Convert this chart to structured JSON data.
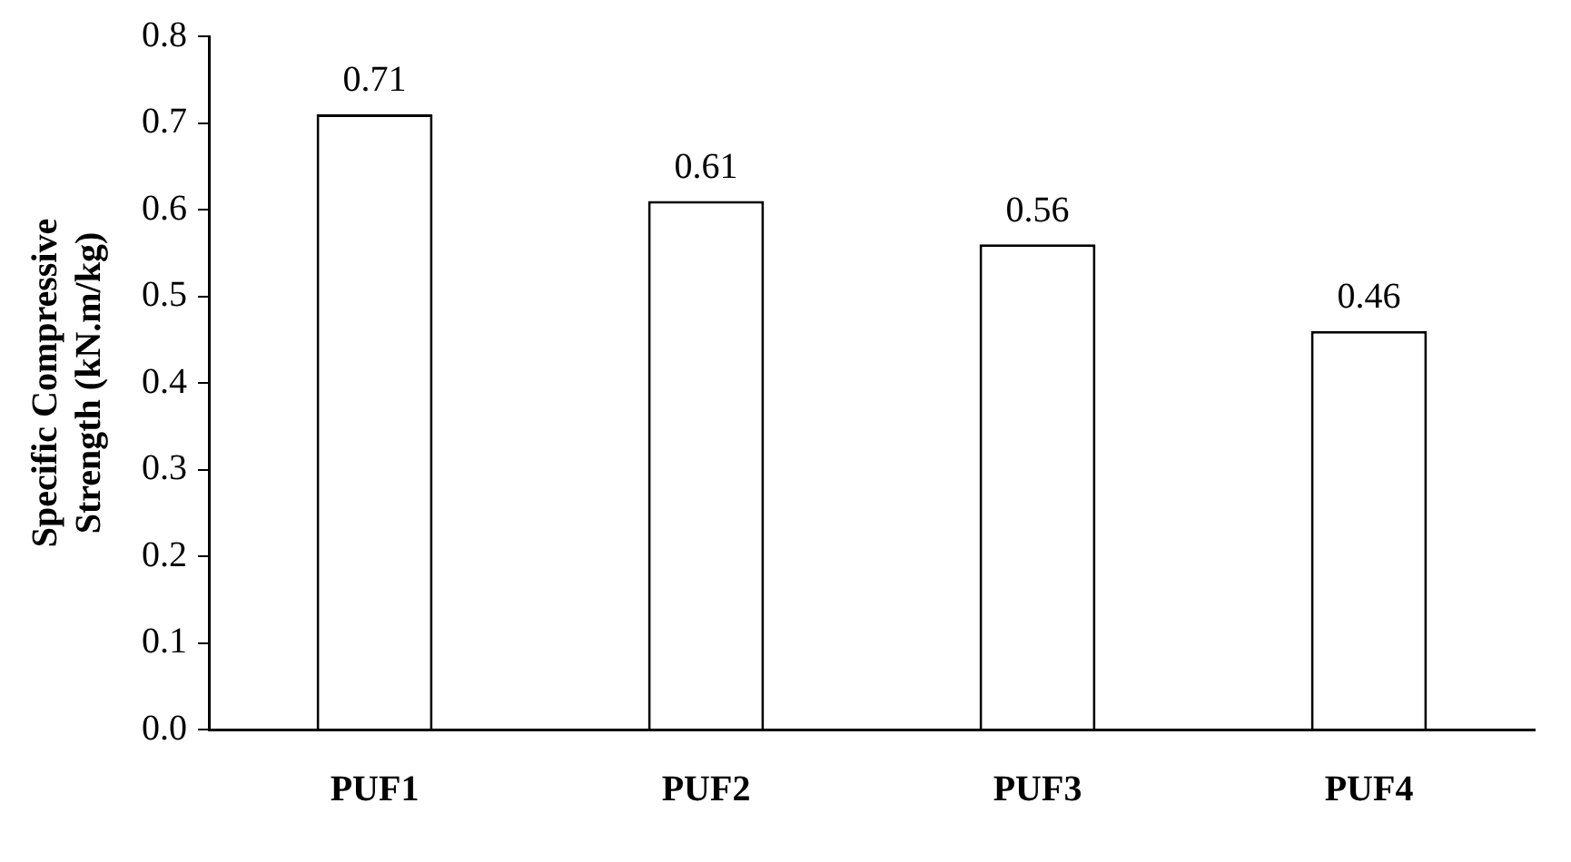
{
  "chart_data": {
    "type": "bar",
    "ylabel": "Specific Compressive\nStrength (kN.m/kg)",
    "categories": [
      "PUF1",
      "PUF2",
      "PUF3",
      "PUF4"
    ],
    "values": [
      0.71,
      0.61,
      0.56,
      0.46
    ],
    "color": "#ffffff",
    "ylim": [
      0,
      0.8
    ],
    "yticks": [
      {
        "value": 0,
        "label": "0.0"
      },
      0.1,
      0.2,
      0.3,
      0.4,
      0.5,
      0.6,
      0.7,
      0.8
    ],
    "grid": false,
    "legend": false,
    "data_labels": true
  }
}
